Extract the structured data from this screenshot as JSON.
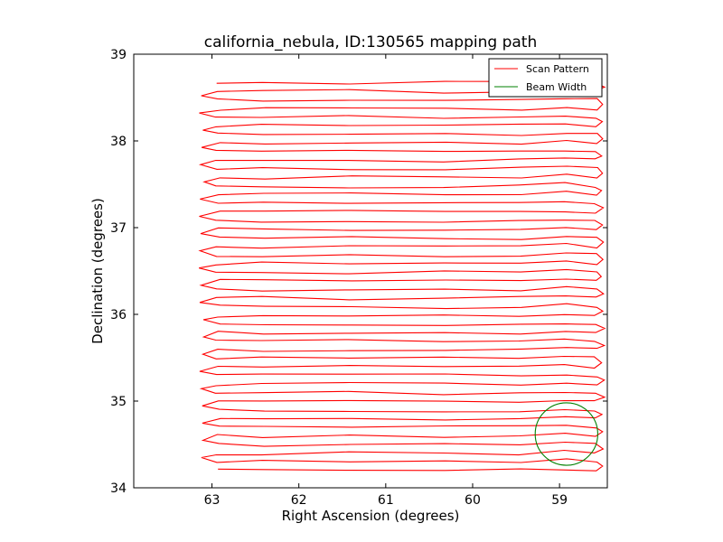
{
  "chart_data": {
    "type": "line",
    "title": "california_nebula, ID:130565 mapping path",
    "xlabel": "Right Ascension (degrees)",
    "ylabel": "Declination (degrees)",
    "x_inverted": true,
    "xlim": [
      63.9,
      58.45
    ],
    "ylim": [
      34,
      39
    ],
    "xticks": [
      63,
      62,
      61,
      60,
      59
    ],
    "xtick_labels": [
      "63",
      "62",
      "61",
      "60",
      "59"
    ],
    "yticks": [
      34,
      35,
      36,
      37,
      38,
      39
    ],
    "ytick_labels": [
      "34",
      "35",
      "36",
      "37",
      "38",
      "39"
    ],
    "grid": false,
    "legend_position": "top-right",
    "series": [
      {
        "name": "Scan Pattern",
        "color": "#ff0000",
        "kind": "raster",
        "ra_start": 62.93,
        "ra_end": 58.58,
        "dec_first_row": 34.2,
        "dec_last_row": 38.67,
        "row_count": 46,
        "end_x_east": 63.12,
        "end_x_west": 58.5
      },
      {
        "name": "Beam Width",
        "color": "#008000",
        "kind": "circle",
        "center_ra": 58.92,
        "center_dec": 34.62,
        "radius_deg": 0.36
      }
    ]
  }
}
